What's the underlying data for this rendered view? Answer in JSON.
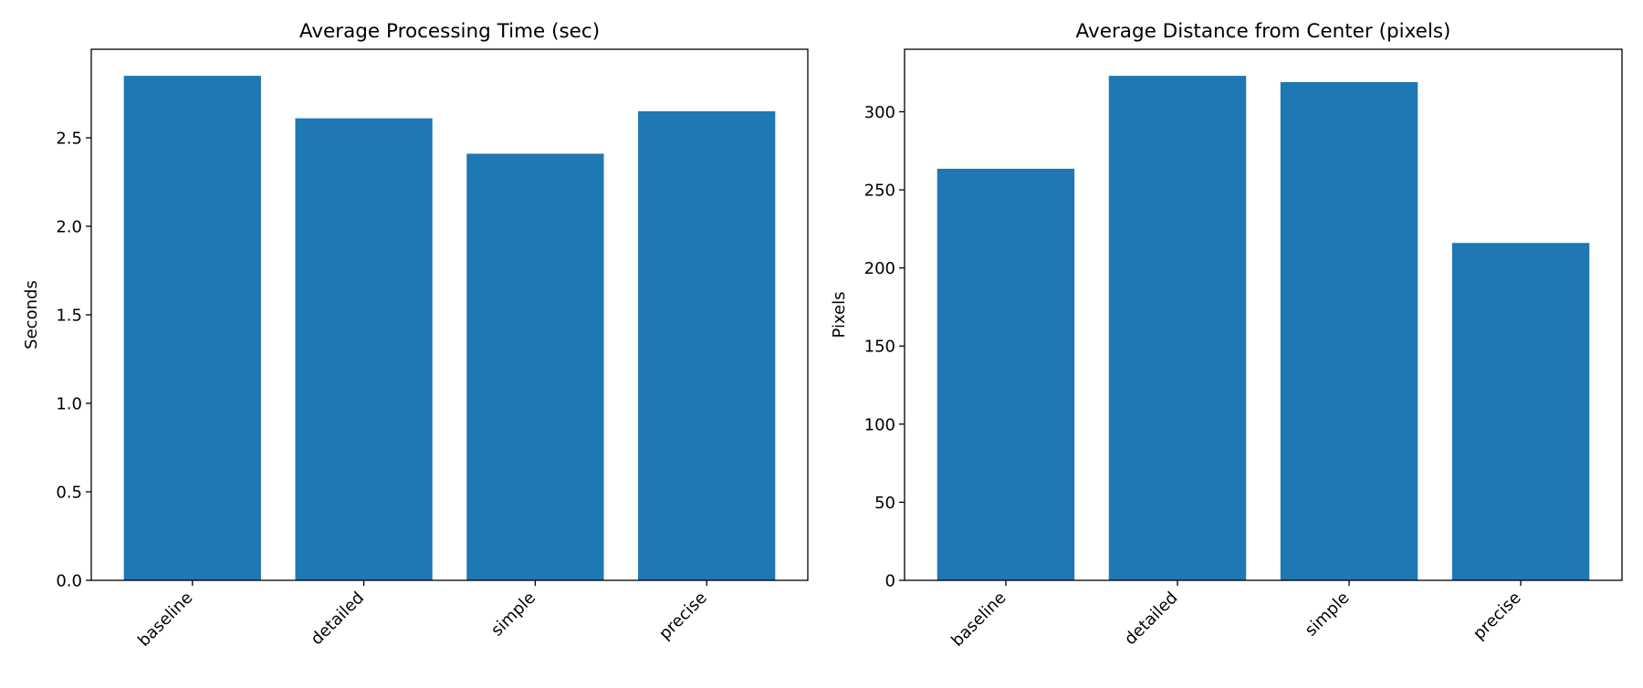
{
  "chart_data": [
    {
      "type": "bar",
      "title": "Average Processing Time (sec)",
      "xlabel": "",
      "ylabel": "Seconds",
      "categories": [
        "baseline",
        "detailed",
        "simple",
        "precise"
      ],
      "values": [
        2.85,
        2.61,
        2.41,
        2.65
      ],
      "ylim": [
        0,
        3.0
      ],
      "yticks": [
        0.0,
        0.5,
        1.0,
        1.5,
        2.0,
        2.5
      ],
      "ytick_labels": [
        "0.0",
        "0.5",
        "1.0",
        "1.5",
        "2.0",
        "2.5"
      ],
      "bar_color": "#1f77b4",
      "grid": false,
      "legend": "none"
    },
    {
      "type": "bar",
      "title": "Average Distance from Center (pixels)",
      "xlabel": "",
      "ylabel": "Pixels",
      "categories": [
        "baseline",
        "detailed",
        "simple",
        "precise"
      ],
      "values": [
        263.5,
        323.0,
        319.0,
        216.0
      ],
      "ylim": [
        0,
        340
      ],
      "yticks": [
        0,
        50,
        100,
        150,
        200,
        250,
        300
      ],
      "ytick_labels": [
        "0",
        "50",
        "100",
        "150",
        "200",
        "250",
        "300"
      ],
      "bar_color": "#1f77b4",
      "grid": false,
      "legend": "none"
    }
  ]
}
